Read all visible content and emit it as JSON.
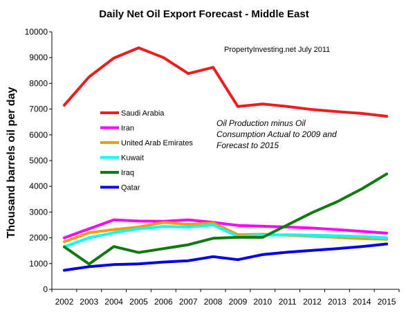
{
  "chart_data": {
    "type": "line",
    "title": "Daily Net Oil Export Forecast  -  Middle East",
    "ylabel": "Thousand barrels oil per day",
    "xlabel": "",
    "credit": "PropertyInvesting.net  July 2011",
    "note_lines": [
      "Oil Production minus Oil",
      "Consumption Actual to 2009 and",
      "Forecast to 2015"
    ],
    "ylim": [
      0,
      10000
    ],
    "yticks": [
      "0",
      "1000",
      "2000",
      "3000",
      "4000",
      "5000",
      "6000",
      "7000",
      "8000",
      "9000",
      "10000"
    ],
    "categories": [
      "2002",
      "2003",
      "2004",
      "2005",
      "2006",
      "2007",
      "2008",
      "2009",
      "2010",
      "2011",
      "2012",
      "2013",
      "2014",
      "2015"
    ],
    "legend_position": "left-center",
    "grid": false,
    "series": [
      {
        "name": "Saudi Arabia",
        "color": "#ee1c1c",
        "values": [
          7150,
          8250,
          8980,
          9380,
          9000,
          8380,
          8620,
          7100,
          7200,
          7100,
          6980,
          6900,
          6830,
          6720
        ]
      },
      {
        "name": "Iran",
        "color": "#ff00ff",
        "values": [
          2000,
          2350,
          2700,
          2650,
          2640,
          2700,
          2600,
          2480,
          2450,
          2420,
          2380,
          2320,
          2250,
          2180
        ]
      },
      {
        "name": "United Arab Emirates",
        "color": "#ff9900",
        "values": [
          1850,
          2200,
          2320,
          2420,
          2600,
          2520,
          2580,
          2120,
          2140,
          2100,
          2060,
          2020,
          1970,
          1940
        ]
      },
      {
        "name": "Kuwait",
        "color": "#00ffff",
        "values": [
          1650,
          2000,
          2200,
          2350,
          2440,
          2420,
          2500,
          2050,
          2100,
          2120,
          2100,
          2080,
          2050,
          2000
        ]
      },
      {
        "name": "Iraq",
        "color": "#0e7a0e",
        "values": [
          1650,
          980,
          1660,
          1430,
          1580,
          1730,
          1980,
          2020,
          2020,
          2500,
          2980,
          3400,
          3900,
          4480
        ]
      },
      {
        "name": "Qatar",
        "color": "#0000ee",
        "values": [
          740,
          880,
          960,
          990,
          1060,
          1110,
          1270,
          1150,
          1350,
          1440,
          1510,
          1580,
          1660,
          1760
        ]
      }
    ]
  }
}
